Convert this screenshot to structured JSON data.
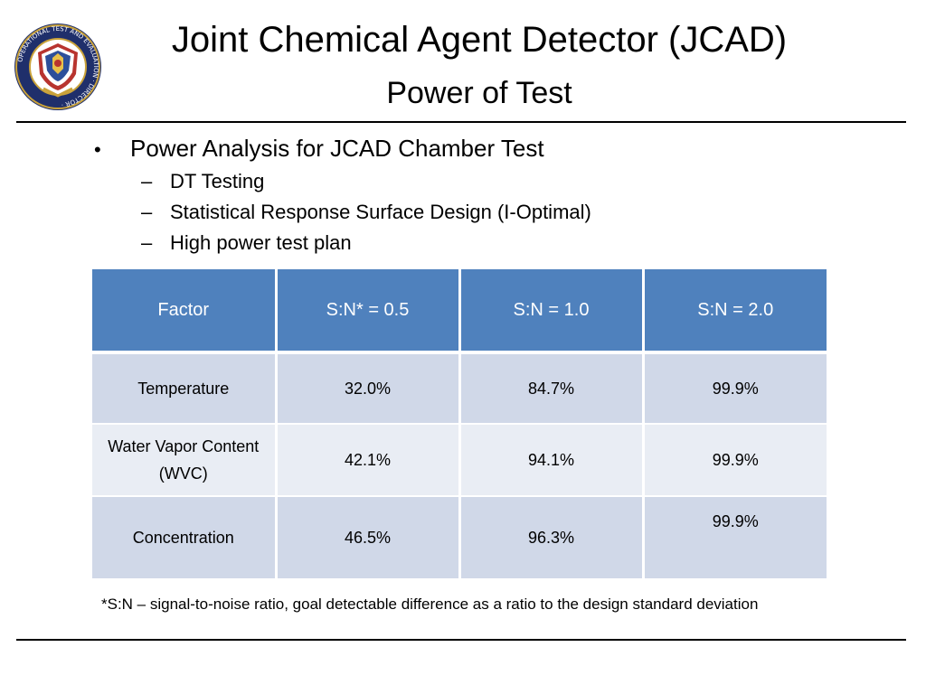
{
  "header": {
    "title": "Joint Chemical Agent Detector (JCAD)",
    "subtitle": "Power of Test",
    "logo_icon": "dote-seal-icon",
    "logo_text": "OPERATIONAL TEST AND EVALUATION · DIRECTOR ·"
  },
  "bullets": {
    "main": "Power Analysis for JCAD Chamber Test",
    "sub": [
      "DT Testing",
      "Statistical Response Surface Design (I-Optimal)",
      "High power test plan"
    ],
    "bullet_glyph": "•",
    "dash_glyph": "–"
  },
  "table": {
    "headers": [
      "Factor",
      "S:N* = 0.5",
      "S:N = 1.0",
      "S:N = 2.0"
    ],
    "rows": [
      [
        "Temperature",
        "32.0%",
        "84.7%",
        "99.9%"
      ],
      [
        "Water Vapor Content (WVC)",
        "42.1%",
        "94.1%",
        "99.9%"
      ],
      [
        "Concentration",
        "46.5%",
        "96.3%",
        "99.9%"
      ]
    ]
  },
  "footnote": "*S:N – signal-to-noise ratio, goal detectable difference as a ratio to the design standard deviation",
  "colors": {
    "header_fill": "#4f81bd",
    "row_dark": "#d0d8e8",
    "row_light": "#e9edf4"
  }
}
